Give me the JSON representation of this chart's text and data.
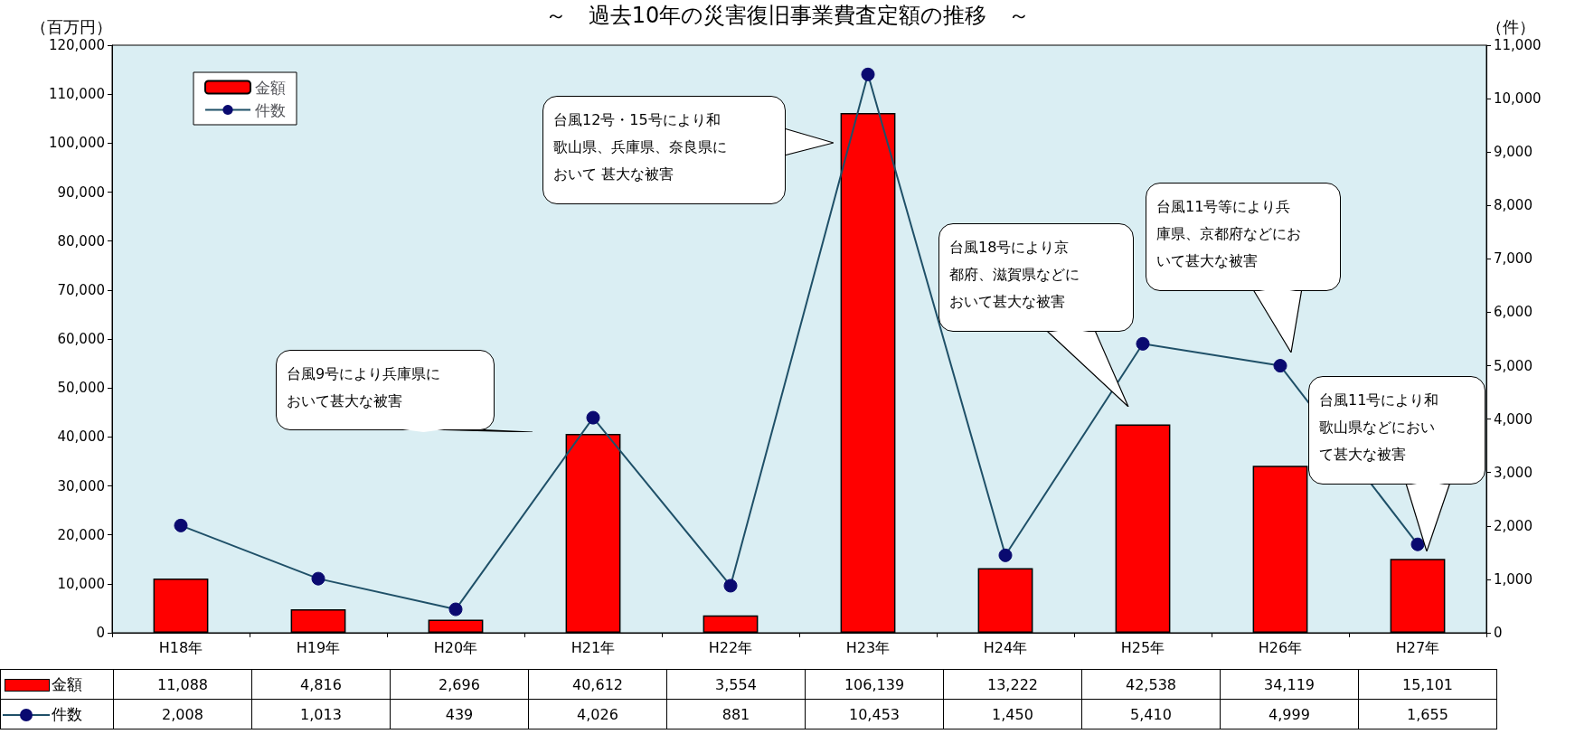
{
  "chart_data": {
    "type": "bar",
    "title": "～　過去10年の災害復旧事業費査定額の推移　～",
    "ylabel": "（百万円）",
    "y2label": "（件）",
    "categories": [
      "H18年",
      "H19年",
      "H20年",
      "H21年",
      "H22年",
      "H23年",
      "H24年",
      "H25年",
      "H26年",
      "H27年"
    ],
    "series": [
      {
        "name": "金額",
        "color": "#ff0000",
        "values": [
          11088,
          4816,
          2696,
          40612,
          3554,
          106139,
          13222,
          42538,
          34119,
          15101
        ],
        "value_labels": [
          "11,088",
          "4,816",
          "2,696",
          "40,612",
          "3,554",
          "106,139",
          "13,222",
          "42,538",
          "34,119",
          "15,101"
        ]
      },
      {
        "name": "件数",
        "type": "line",
        "axis": "y2",
        "color": "#1f5068",
        "marker": "circle",
        "values": [
          2008,
          1013,
          439,
          4026,
          881,
          10453,
          1450,
          5410,
          4999,
          1655
        ],
        "value_labels": [
          "2,008",
          "1,013",
          "439",
          "4,026",
          "881",
          "10,453",
          "1,450",
          "5,410",
          "4,999",
          "1,655"
        ]
      }
    ],
    "ylim": [
      0,
      120000
    ],
    "yticks": [
      0,
      {
        "value": 10000,
        "label": "10,000"
      },
      {
        "value": 20000,
        "label": "20,000"
      },
      {
        "value": 30000,
        "label": "30,000"
      },
      {
        "value": 40000,
        "label": "40,000"
      },
      {
        "value": 50000,
        "label": "50,000"
      },
      {
        "value": 60000,
        "label": "60,000"
      },
      {
        "value": 70000,
        "label": "70,000"
      },
      {
        "value": 80000,
        "label": "80,000"
      },
      {
        "value": 90000,
        "label": "90,000"
      },
      {
        "value": 100000,
        "label": "100,000"
      },
      {
        "value": 110000,
        "label": "110,000"
      },
      {
        "value": 120000,
        "label": "120,000"
      }
    ],
    "y2lim": [
      0,
      11000
    ],
    "y2ticks": [
      0,
      {
        "value": 1000,
        "label": "1,000"
      },
      {
        "value": 2000,
        "label": "2,000"
      },
      {
        "value": 3000,
        "label": "3,000"
      },
      {
        "value": 4000,
        "label": "4,000"
      },
      {
        "value": 5000,
        "label": "5,000"
      },
      {
        "value": 6000,
        "label": "6,000"
      },
      {
        "value": 7000,
        "label": "7,000"
      },
      {
        "value": 8000,
        "label": "8,000"
      },
      {
        "value": 9000,
        "label": "9,000"
      },
      {
        "value": 10000,
        "label": "10,000"
      },
      {
        "value": 11000,
        "label": "11,000"
      }
    ],
    "legend": "top left",
    "annotations": [
      "台風9号により兵庫県において甚大な被害",
      "台風12号・15号により和歌山県、兵庫県、奈良県において 甚大な被害",
      "台風18号により京都府、滋賀県などにおいて甚大な被害",
      "台風11号等により兵庫県、京都府などにおいて甚大な被害",
      "台風11号により和歌山県などにおいて甚大な被害"
    ]
  }
}
